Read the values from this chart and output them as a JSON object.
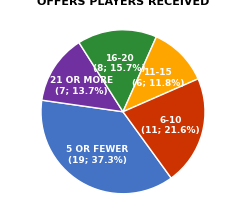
{
  "slices": [
    {
      "label": "5 OR FEWER\n(19; 37.3%)",
      "value": 19,
      "color": "#4472C4"
    },
    {
      "label": "21 OR MORE\n(7; 13.7%)",
      "value": 7,
      "color": "#7030A0"
    },
    {
      "label": "16-20\n(8; 15.7%)",
      "value": 8,
      "color": "#2E8B35"
    },
    {
      "label": "11-15\n(6; 11.8%)",
      "value": 6,
      "color": "#FFA500"
    },
    {
      "label": "6-10\n(11; 21.6%)",
      "value": 11,
      "color": "#CC3300"
    }
  ],
  "title_fontsize": 8,
  "label_fontsize": 6.5,
  "background_color": "#FFFFFF",
  "startangle": -54
}
